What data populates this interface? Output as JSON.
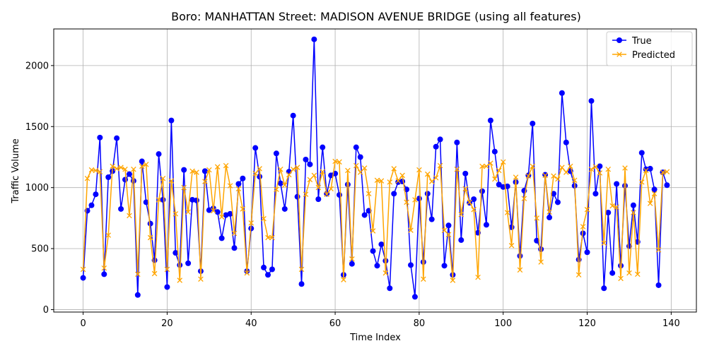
{
  "chart_data": {
    "type": "line",
    "title": "Boro: MANHATTAN Street: MADISON AVENUE BRIDGE (using all features)",
    "xlabel": "Time Index",
    "ylabel": "Traffic Volume",
    "xlim": [
      -7,
      146
    ],
    "ylim": [
      -20,
      2300
    ],
    "xticks": [
      0,
      20,
      40,
      60,
      80,
      100,
      120,
      140
    ],
    "yticks": [
      0,
      500,
      1000,
      1500,
      2000
    ],
    "grid": true,
    "legend_position": "top-right",
    "colors": {
      "true": "#0000ff",
      "predicted": "#ffa500",
      "grid": "#b0b0b0"
    },
    "series": [
      {
        "name": "True",
        "marker": "circle",
        "values": [
          260,
          810,
          855,
          945,
          1410,
          290,
          1085,
          1135,
          1405,
          825,
          1065,
          1110,
          1055,
          120,
          1215,
          880,
          705,
          405,
          1275,
          900,
          185,
          1550,
          465,
          365,
          1145,
          380,
          900,
          895,
          315,
          1135,
          815,
          830,
          800,
          585,
          775,
          785,
          505,
          1030,
          1075,
          315,
          665,
          1325,
          1090,
          345,
          285,
          330,
          1280,
          1035,
          825,
          1130,
          1590,
          925,
          210,
          1230,
          1190,
          2215,
          905,
          1330,
          950,
          1100,
          1115,
          940,
          285,
          1025,
          375,
          1330,
          1250,
          775,
          810,
          480,
          360,
          535,
          400,
          175,
          950,
          1045,
          1050,
          985,
          365,
          105,
          910,
          390,
          950,
          740,
          1335,
          1395,
          360,
          690,
          285,
          1370,
          570,
          1115,
          875,
          905,
          630,
          970,
          695,
          1550,
          1295,
          1025,
          1005,
          1010,
          675,
          1045,
          440,
          975,
          1100,
          1525,
          565,
          495,
          1105,
          755,
          950,
          880,
          1775,
          1370,
          1135,
          1015,
          410,
          625,
          470,
          1710,
          950,
          1175,
          175,
          795,
          300,
          1030,
          360,
          1015,
          520,
          855,
          555,
          1285,
          1150,
          1155,
          985,
          200,
          1125,
          1020
        ]
      },
      {
        "name": "Predicted",
        "marker": "x",
        "values": [
          330,
          1075,
          1145,
          1140,
          1130,
          340,
          610,
          1175,
          1155,
          1165,
          1150,
          770,
          1150,
          290,
          1175,
          1190,
          590,
          295,
          900,
          1075,
          330,
          1055,
          785,
          240,
          1000,
          800,
          1135,
          1125,
          250,
          1050,
          1145,
          810,
          1170,
          760,
          1180,
          1015,
          625,
          990,
          825,
          300,
          710,
          1115,
          1155,
          745,
          590,
          590,
          985,
          1150,
          1020,
          1105,
          1150,
          1165,
          330,
          945,
          1065,
          1100,
          1000,
          1130,
          945,
          990,
          1215,
          1210,
          245,
          1140,
          415,
          1180,
          1125,
          1160,
          950,
          645,
          1060,
          1055,
          300,
          1045,
          1155,
          1055,
          1100,
          880,
          650,
          900,
          1145,
          250,
          1110,
          1050,
          1080,
          1180,
          650,
          615,
          240,
          1150,
          780,
          990,
          880,
          820,
          265,
          1175,
          1175,
          1200,
          1070,
          1140,
          1210,
          795,
          525,
          1085,
          325,
          910,
          1095,
          1175,
          750,
          390,
          1100,
          800,
          1095,
          1070,
          1165,
          1125,
          1175,
          1060,
          285,
          680,
          820,
          1150,
          1170,
          1120,
          545,
          1150,
          850,
          840,
          255,
          1160,
          300,
          795,
          290,
          1045,
          1140,
          870,
          950,
          490,
          1125,
          1130
        ]
      }
    ]
  }
}
